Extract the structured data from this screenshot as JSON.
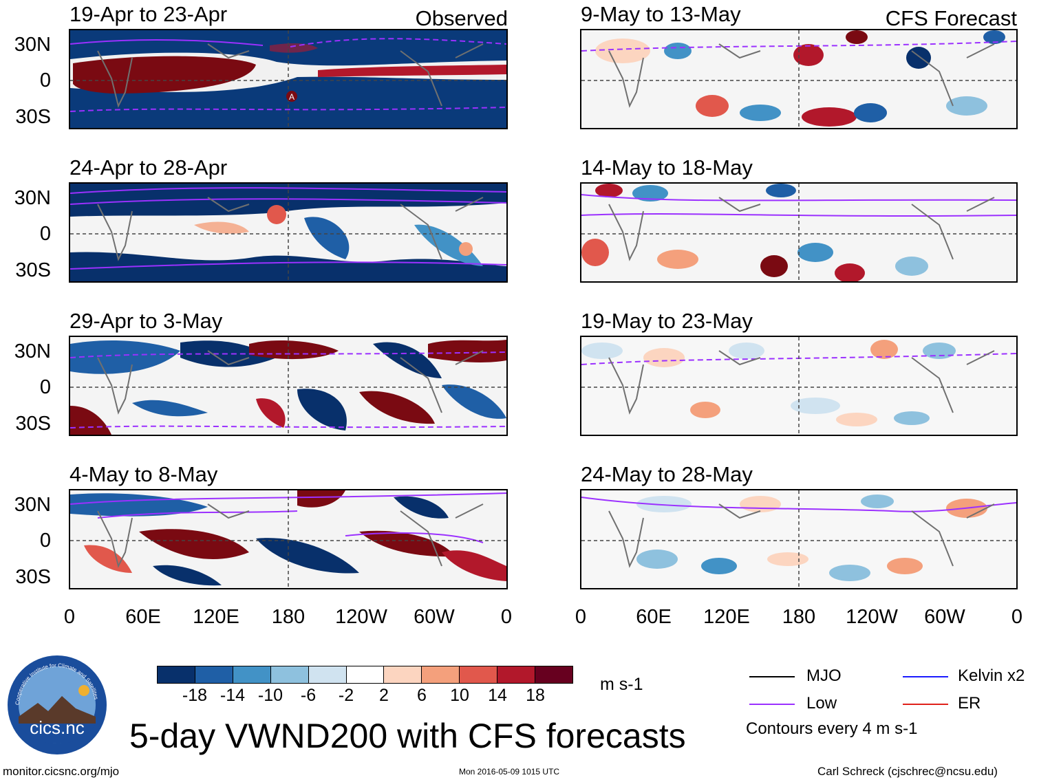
{
  "title": "5-day VWND200 with CFS forecasts",
  "column_headers": {
    "left": "Observed",
    "right": "CFS Forecast"
  },
  "observed_panels": [
    {
      "label": "19-Apr to 23-Apr"
    },
    {
      "label": "24-Apr to 28-Apr"
    },
    {
      "label": "29-Apr to 3-May"
    },
    {
      "label": "4-May to 8-May"
    }
  ],
  "forecast_panels": [
    {
      "label": "9-May to 13-May"
    },
    {
      "label": "14-May to 18-May"
    },
    {
      "label": "19-May to 23-May"
    },
    {
      "label": "24-May to 28-May"
    }
  ],
  "lat_labels": [
    "30N",
    "0",
    "30S"
  ],
  "lon_labels": [
    "0",
    "60E",
    "120E",
    "180",
    "120W",
    "60W",
    "0"
  ],
  "marker_label": "A",
  "colorbar": {
    "ticks": [
      "-18",
      "-14",
      "-10",
      "-6",
      "-2",
      "2",
      "6",
      "10",
      "14",
      "18"
    ],
    "units": "m s-1",
    "colors": [
      "#08306b",
      "#1f5fa6",
      "#4292c6",
      "#8ec1de",
      "#d0e3f0",
      "#ffffff",
      "#fcd5c0",
      "#f4a07c",
      "#e1584c",
      "#b2182b",
      "#67001f"
    ]
  },
  "legend": {
    "items": [
      {
        "label": "MJO",
        "color": "#000000"
      },
      {
        "label": "Kelvin x2",
        "color": "#1a1aff"
      },
      {
        "label": "Low",
        "color": "#9b30ff"
      },
      {
        "label": "ER",
        "color": "#e0201a"
      }
    ],
    "note": "Contours every 4 m s-1"
  },
  "logo": {
    "text": "cics.nc",
    "ring_text": "Cooperative Institute for Climate and Satellites"
  },
  "footer": {
    "url": "monitor.cicsnc.org/mjo",
    "timestamp": "Mon 2016-05-09 1015 UTC",
    "author": "Carl Schreck (cjschrec@ncsu.edu)"
  }
}
